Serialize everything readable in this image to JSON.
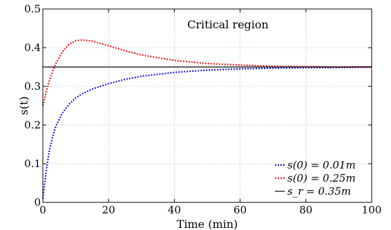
{
  "chart_data": {
    "type": "line",
    "xlabel": "Time (min)",
    "ylabel": "s(t)",
    "xlim": [
      0,
      100
    ],
    "ylim": [
      0,
      0.5
    ],
    "xticks": [
      0,
      20,
      40,
      60,
      80,
      100
    ],
    "yticks": [
      0,
      0.1,
      0.2,
      0.3,
      0.4,
      0.5
    ],
    "xtick_labels": [
      "0",
      "20",
      "40",
      "60",
      "80",
      "100"
    ],
    "ytick_labels": [
      "0",
      "0.1",
      "0.2",
      "0.3",
      "0.4",
      "0.5"
    ],
    "grid": true,
    "annotation": "Critical region",
    "legend_position": "bottom-right",
    "series": [
      {
        "name": "s(0) = 0.01m",
        "color": "#0000ff",
        "style": "dotted",
        "x": [
          0,
          1,
          2,
          3,
          4,
          6,
          8,
          10,
          12,
          15,
          20,
          25,
          30,
          40,
          50,
          60,
          70,
          80,
          90,
          100
        ],
        "y": [
          0.01,
          0.08,
          0.135,
          0.17,
          0.198,
          0.232,
          0.254,
          0.27,
          0.281,
          0.293,
          0.307,
          0.318,
          0.326,
          0.336,
          0.342,
          0.345,
          0.347,
          0.348,
          0.349,
          0.35
        ]
      },
      {
        "name": "s(0) = 0.25m",
        "color": "#ff0000",
        "style": "dotted",
        "x": [
          0,
          1,
          2,
          3,
          4,
          6,
          8,
          10,
          12,
          15,
          20,
          25,
          30,
          40,
          50,
          60,
          70,
          80,
          90,
          100
        ],
        "y": [
          0.25,
          0.285,
          0.315,
          0.34,
          0.36,
          0.39,
          0.409,
          0.418,
          0.42,
          0.417,
          0.405,
          0.392,
          0.381,
          0.367,
          0.359,
          0.355,
          0.352,
          0.351,
          0.35,
          0.35
        ]
      },
      {
        "name": "s_r = 0.35m",
        "color": "#000000",
        "style": "solid",
        "x": [
          0,
          100
        ],
        "y": [
          0.35,
          0.35
        ]
      }
    ]
  }
}
